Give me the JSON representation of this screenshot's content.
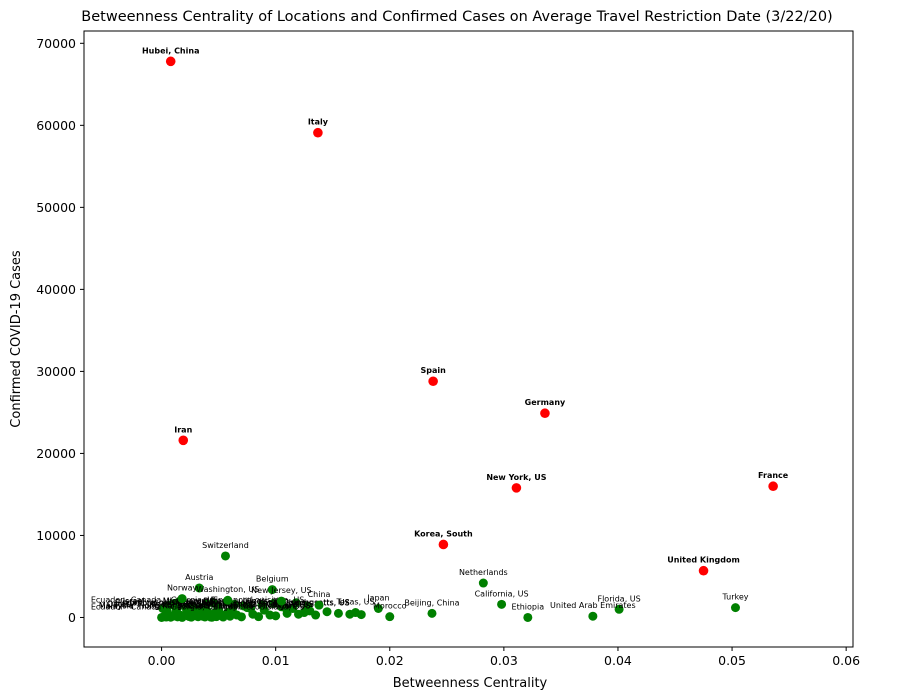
{
  "chart_data": {
    "type": "scatter",
    "title": "Betweenness Centrality of Locations and Confirmed Cases on Average Travel Restriction Date (3/22/20)",
    "xlabel": "Betweenness Centrality",
    "ylabel": "Confirmed COVID-19 Cases",
    "xlim": [
      -0.0068,
      0.0606
    ],
    "ylim": [
      -3600,
      71500
    ],
    "xticks": [
      0.0,
      0.01,
      0.02,
      0.03,
      0.04,
      0.05,
      0.06
    ],
    "xtick_labels": [
      "0.00",
      "0.01",
      "0.02",
      "0.03",
      "0.04",
      "0.05",
      "0.06"
    ],
    "yticks": [
      0,
      10000,
      20000,
      30000,
      40000,
      50000,
      60000,
      70000
    ],
    "ytick_labels": [
      "0",
      "10000",
      "20000",
      "30000",
      "40000",
      "50000",
      "60000",
      "70000"
    ],
    "grid": false,
    "colors": {
      "high": "#ff0000",
      "low": "#008000"
    },
    "high_points": [
      {
        "label": "Hubei, China",
        "x": 0.0008,
        "y": 67800
      },
      {
        "label": "Italy",
        "x": 0.0137,
        "y": 59100
      },
      {
        "label": "Spain",
        "x": 0.0238,
        "y": 28800
      },
      {
        "label": "Germany",
        "x": 0.0336,
        "y": 24900
      },
      {
        "label": "Iran",
        "x": 0.0019,
        "y": 21600
      },
      {
        "label": "France",
        "x": 0.0536,
        "y": 16000
      },
      {
        "label": "New York, US",
        "x": 0.0311,
        "y": 15800
      },
      {
        "label": "Korea, South",
        "x": 0.0247,
        "y": 8900
      },
      {
        "label": "United Kingdom",
        "x": 0.0475,
        "y": 5700
      }
    ],
    "labeled_low_points": [
      {
        "label": "Switzerland",
        "x": 0.0056,
        "y": 7500
      },
      {
        "label": "Netherlands",
        "x": 0.0282,
        "y": 4200
      },
      {
        "label": "Austria",
        "x": 0.0033,
        "y": 3600
      },
      {
        "label": "Belgium",
        "x": 0.0097,
        "y": 3400
      },
      {
        "label": "Norway",
        "x": 0.0018,
        "y": 2300
      },
      {
        "label": "Washington, US",
        "x": 0.0058,
        "y": 2100
      },
      {
        "label": "New Jersey, US",
        "x": 0.0105,
        "y": 2000
      },
      {
        "label": "China",
        "x": 0.0138,
        "y": 1500
      },
      {
        "label": "Japan",
        "x": 0.019,
        "y": 1100
      },
      {
        "label": "California, US",
        "x": 0.0298,
        "y": 1600
      },
      {
        "label": "Texas, US",
        "x": 0.017,
        "y": 600
      },
      {
        "label": "Beijing, China",
        "x": 0.0237,
        "y": 500
      },
      {
        "label": "Morocco",
        "x": 0.02,
        "y": 100
      },
      {
        "label": "Florida, US",
        "x": 0.0401,
        "y": 1000
      },
      {
        "label": "Ethiopia",
        "x": 0.0321,
        "y": 0
      },
      {
        "label": "United Arab Emirates",
        "x": 0.0378,
        "y": 150
      },
      {
        "label": "Turkey",
        "x": 0.0503,
        "y": 1200
      }
    ],
    "overlapping_labels": [
      "Ecuador",
      "Malaysia",
      "Qatar",
      "Singapore",
      "Israel",
      "Canada",
      "Hong Kong, China",
      "Illinois, US",
      "Louisiana, US",
      "Michigan, US",
      "Georgia, US",
      "Massachusetts, US"
    ],
    "small_points": [
      [
        0.0,
        0
      ],
      [
        0.0002,
        100
      ],
      [
        0.0004,
        50
      ],
      [
        0.0006,
        200
      ],
      [
        0.0008,
        30
      ],
      [
        0.001,
        150
      ],
      [
        0.0012,
        400
      ],
      [
        0.0014,
        80
      ],
      [
        0.0016,
        300
      ],
      [
        0.0018,
        10
      ],
      [
        0.002,
        250
      ],
      [
        0.0022,
        600
      ],
      [
        0.0024,
        120
      ],
      [
        0.0026,
        40
      ],
      [
        0.0028,
        700
      ],
      [
        0.003,
        200
      ],
      [
        0.0032,
        90
      ],
      [
        0.0034,
        500
      ],
      [
        0.0036,
        150
      ],
      [
        0.0038,
        60
      ],
      [
        0.004,
        800
      ],
      [
        0.0042,
        300
      ],
      [
        0.0044,
        20
      ],
      [
        0.0046,
        450
      ],
      [
        0.0048,
        100
      ],
      [
        0.005,
        900
      ],
      [
        0.0052,
        250
      ],
      [
        0.0054,
        50
      ],
      [
        0.0058,
        600
      ],
      [
        0.006,
        150
      ],
      [
        0.0062,
        1000
      ],
      [
        0.0066,
        300
      ],
      [
        0.007,
        80
      ],
      [
        0.0075,
        1200
      ],
      [
        0.008,
        400
      ],
      [
        0.0085,
        100
      ],
      [
        0.009,
        900
      ],
      [
        0.0095,
        300
      ],
      [
        0.01,
        200
      ],
      [
        0.0105,
        1300
      ],
      [
        0.011,
        500
      ],
      [
        0.0115,
        1100
      ],
      [
        0.012,
        400
      ],
      [
        0.0125,
        600
      ],
      [
        0.013,
        800
      ],
      [
        0.0135,
        300
      ],
      [
        0.0145,
        700
      ],
      [
        0.0155,
        500
      ],
      [
        0.0165,
        400
      ],
      [
        0.0175,
        350
      ],
      [
        0.0001,
        1100
      ],
      [
        0.0003,
        1300
      ],
      [
        0.0007,
        1500
      ],
      [
        0.0011,
        1700
      ],
      [
        0.0015,
        1900
      ],
      [
        0.0021,
        1200
      ],
      [
        0.0027,
        1400
      ],
      [
        0.0031,
        1000
      ],
      [
        0.0039,
        1600
      ],
      [
        0.0045,
        1800
      ],
      [
        0.0049,
        1300
      ],
      [
        0.0057,
        1900
      ],
      [
        0.0064,
        1600
      ],
      [
        0.0072,
        1400
      ],
      [
        0.0078,
        1100
      ],
      [
        0.0088,
        1500
      ],
      [
        0.0098,
        1700
      ],
      [
        0.0108,
        1200
      ],
      [
        0.0118,
        1800
      ],
      [
        0.0128,
        1400
      ],
      [
        0.0005,
        700
      ],
      [
        0.0013,
        900
      ],
      [
        0.0023,
        1000
      ],
      [
        0.0035,
        1200
      ],
      [
        0.0043,
        50
      ],
      [
        0.0055,
        300
      ]
    ],
    "small_label_texts": [
      "Ecuador",
      "Malaysia",
      "Qatar",
      "Singapore",
      "Israel",
      "Canada",
      "Hong Kong, China"
    ]
  }
}
